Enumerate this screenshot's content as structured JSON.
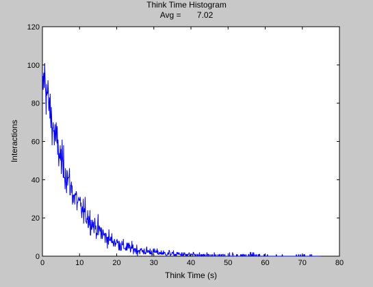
{
  "chart_data": {
    "type": "line",
    "title": "Think Time Histogram",
    "subtitle_prefix": "Avg =",
    "subtitle_value": "7.02",
    "xlabel": "Think Time (s)",
    "ylabel": "Interactions",
    "xlim": [
      0,
      80
    ],
    "ylim": [
      0,
      120
    ],
    "xticks": [
      0,
      10,
      20,
      30,
      40,
      50,
      60,
      70,
      80
    ],
    "yticks": [
      0,
      20,
      40,
      60,
      80,
      100,
      120
    ],
    "grid": false,
    "legend": "none",
    "series": [
      {
        "color": "#0000ff",
        "bin_width_s": 0.1,
        "x_range": [
          0,
          75
        ],
        "envelope_note": "histogram counts per bin; values approximated from the envelope",
        "envelope_x": [
          0,
          0.5,
          1,
          2,
          3,
          4,
          5,
          6,
          7,
          8,
          9,
          10,
          11,
          12,
          13,
          14,
          15,
          16,
          17,
          18,
          19,
          20,
          22,
          24,
          26,
          28,
          30,
          33,
          36,
          40,
          45,
          50,
          60,
          70,
          75
        ],
        "envelope_y": [
          85,
          95,
          88,
          76,
          66,
          58,
          50,
          45,
          40,
          34,
          30,
          26,
          23,
          21,
          18,
          16,
          14,
          12,
          10,
          9,
          8,
          7,
          5,
          4,
          3,
          2.5,
          2,
          1.5,
          1,
          0.7,
          0.4,
          0.3,
          0.15,
          0.1,
          0
        ]
      }
    ]
  },
  "colors": {
    "figure_background": "#c8c8c8",
    "axes_background": "#ffffff",
    "line": "#0000ff"
  }
}
